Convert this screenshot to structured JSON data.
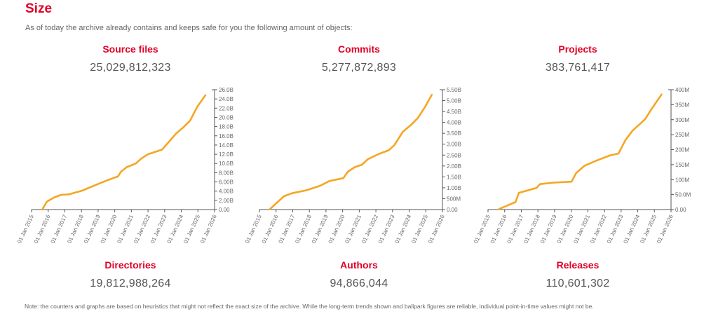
{
  "header": {
    "title": "Size",
    "intro": "As of today the archive already contains and keeps safe for you the following amount of objects:"
  },
  "counters": [
    {
      "label": "Source files",
      "value": "25,029,812,323"
    },
    {
      "label": "Commits",
      "value": "5,277,872,893"
    },
    {
      "label": "Projects",
      "value": "383,761,417"
    },
    {
      "label": "Directories",
      "value": "19,812,988,264"
    },
    {
      "label": "Authors",
      "value": "94,866,044"
    },
    {
      "label": "Releases",
      "value": "110,601,302"
    }
  ],
  "note": "Note: the counters and graphs are based on heuristics that might not reflect the exact size of the archive. While the long-term trends shown and ballpark figures are reliable, individual point-in-time values might not be.",
  "colors": {
    "accent": "#e20026",
    "line": "#f5a623",
    "axis": "#555555"
  },
  "chart_data": [
    {
      "type": "line",
      "title": "Source files",
      "xlabel": "",
      "ylabel": "",
      "xlim": [
        2015,
        2026
      ],
      "ylim": [
        0,
        26
      ],
      "x_ticks": [
        "01 Jan 2015",
        "01 Jan 2016",
        "01 Jan 2017",
        "01 Jan 2018",
        "01 Jan 2019",
        "01 Jan 2020",
        "01 Jan 2021",
        "01 Jan 2022",
        "01 Jan 2023",
        "01 Jan 2024",
        "01 Jan 2025",
        "01 Jan 2026"
      ],
      "y_ticks": [
        0,
        2,
        4,
        6,
        8,
        10,
        12,
        14,
        16,
        18,
        20,
        22,
        24,
        26
      ],
      "y_tick_labels": [
        "0.00",
        "2.00B",
        "4.00B",
        "6.00B",
        "8.00B",
        "10.0B",
        "12.0B",
        "14.0B",
        "16.0B",
        "18.0B",
        "20.0B",
        "22.0B",
        "24.0B",
        "26.0B"
      ],
      "grid": false,
      "y_axis_position": "right",
      "series": [
        {
          "name": "Source files",
          "x": [
            2015.64,
            2015.92,
            2016.34,
            2016.77,
            2017.25,
            2018.04,
            2018.9,
            2019.45,
            2020.2,
            2020.37,
            2020.72,
            2021.27,
            2021.57,
            2021.99,
            2022.84,
            2023.26,
            2023.69,
            2024.11,
            2024.53,
            2024.96,
            2025.45
          ],
          "y": [
            0,
            1.7,
            2.6,
            3.2,
            3.3,
            4.1,
            5.4,
            6.2,
            7.2,
            8.2,
            9.2,
            10.0,
            11.0,
            12.0,
            13.0,
            14.7,
            16.5,
            17.8,
            19.3,
            22.3,
            24.8
          ]
        }
      ]
    },
    {
      "type": "line",
      "title": "Commits",
      "xlabel": "",
      "ylabel": "",
      "xlim": [
        2015,
        2026
      ],
      "ylim": [
        0,
        5.5
      ],
      "x_ticks": [
        "01 Jan 2015",
        "01 Jan 2016",
        "01 Jan 2017",
        "01 Jan 2018",
        "01 Jan 2019",
        "01 Jan 2020",
        "01 Jan 2021",
        "01 Jan 2022",
        "01 Jan 2023",
        "01 Jan 2024",
        "01 Jan 2025",
        "01 Jan 2026"
      ],
      "y_ticks": [
        0,
        0.5,
        1,
        1.5,
        2,
        2.5,
        3,
        3.5,
        4,
        4.5,
        5,
        5.5
      ],
      "y_tick_labels": [
        "0.00",
        "500M",
        "1.00B",
        "1.50B",
        "2.00B",
        "2.50B",
        "3.00B",
        "3.50B",
        "4.00B",
        "4.50B",
        "5.00B",
        "5.50B"
      ],
      "grid": false,
      "y_axis_position": "right",
      "series": [
        {
          "name": "Commits",
          "x": [
            2015.63,
            2016.47,
            2016.96,
            2017.8,
            2018.64,
            2019.2,
            2020.04,
            2020.32,
            2020.74,
            2021.16,
            2021.51,
            2022.14,
            2022.77,
            2023.12,
            2023.61,
            2024.1,
            2024.52,
            2024.94,
            2025.36
          ],
          "y": [
            0.02,
            0.61,
            0.75,
            0.88,
            1.09,
            1.31,
            1.44,
            1.74,
            1.95,
            2.06,
            2.31,
            2.54,
            2.72,
            2.97,
            3.56,
            3.88,
            4.2,
            4.69,
            5.27
          ]
        }
      ]
    },
    {
      "type": "line",
      "title": "Projects",
      "xlabel": "",
      "ylabel": "",
      "xlim": [
        2015,
        2026
      ],
      "ylim": [
        0,
        400
      ],
      "x_ticks": [
        "01 Jan 2015",
        "01 Jan 2016",
        "01 Jan 2017",
        "01 Jan 2018",
        "01 Jan 2019",
        "01 Jan 2020",
        "01 Jan 2021",
        "01 Jan 2022",
        "01 Jan 2023",
        "01 Jan 2024",
        "01 Jan 2025",
        "01 Jan 2026"
      ],
      "y_ticks": [
        0,
        50,
        100,
        150,
        200,
        250,
        300,
        350,
        400
      ],
      "y_tick_labels": [
        "0.00",
        "50.0M",
        "100M",
        "150M",
        "200M",
        "250M",
        "300M",
        "350M",
        "400M"
      ],
      "grid": false,
      "y_axis_position": "right",
      "series": [
        {
          "name": "Projects",
          "x": [
            2015.66,
            2016.65,
            2016.86,
            2017.91,
            2018.12,
            2018.97,
            2020.02,
            2020.3,
            2020.79,
            2021.5,
            2022.34,
            2022.84,
            2023.26,
            2023.68,
            2024.45,
            2024.8,
            2025.43
          ],
          "y": [
            1.6,
            25,
            56,
            72,
            85,
            90,
            93,
            122,
            146,
            163,
            181,
            187,
            232,
            263,
            302,
            333,
            384
          ]
        }
      ]
    }
  ]
}
